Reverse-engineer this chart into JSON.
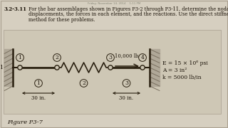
{
  "title_bold": "3.2-3.11",
  "title_line1": "For the bar assemblages shown in Figures P3-2 through P3-11, determine the nodal",
  "title_line2": "displacements, the forces in each element, and the reactions. Use the direct stiffness",
  "title_line3": "method for these problems.",
  "figure_label": "Figure P3-7",
  "prop1": "E = 15 × 10⁶ psi",
  "prop2": "A = 3 in²",
  "prop3": "k = 5000 lb/in",
  "dim1": "30 in.",
  "dim2": "30 in.",
  "force_label": "3  10,000 lb",
  "node_labels": [
    "1",
    "2",
    "3",
    "4"
  ],
  "elem_labels": [
    "1",
    "2",
    "3"
  ],
  "bg_color": "#d6cfc0",
  "inner_bg": "#ddd6c5",
  "text_color": "#1a1208",
  "wall_hatch_color": "#555544",
  "bar_color": "#2a2010",
  "spring_color": "#2a2010",
  "node_fill": "#c8c0b0",
  "border_color": "#aaa090"
}
